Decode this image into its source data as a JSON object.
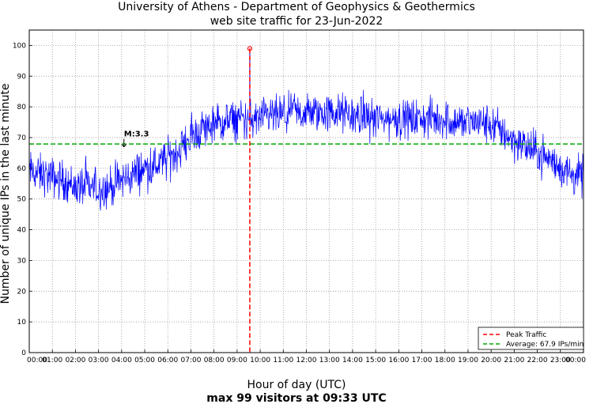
{
  "chart_data": {
    "type": "line",
    "title": "University of Athens - Department of Geophysics & Geothermics",
    "subtitle": "web site traffic for 23-Jun-2022",
    "xlabel": "Hour of day (UTC)",
    "xlabel2": "max 99 visitors at 09:33 UTC",
    "ylabel": "Number of unique IPs in the last minute",
    "ylim": [
      0,
      105
    ],
    "xlim_hours": [
      0,
      24
    ],
    "yticks": [
      0,
      10,
      20,
      30,
      40,
      50,
      60,
      70,
      80,
      90,
      100
    ],
    "xtick_labels": [
      "00:00",
      "01:00",
      "02:00",
      "03:00",
      "04:00",
      "05:00",
      "06:00",
      "07:00",
      "08:00",
      "09:00",
      "10:00",
      "11:00",
      "12:00",
      "13:00",
      "14:00",
      "15:00",
      "16:00",
      "17:00",
      "18:00",
      "19:00",
      "20:00",
      "21:00",
      "22:00",
      "23:00",
      "00:00"
    ],
    "grid": true,
    "series": [
      {
        "name": "traffic",
        "color": "#0000ff",
        "hours": [
          0,
          0.5,
          1,
          1.5,
          2,
          2.5,
          3,
          3.5,
          4,
          4.5,
          5,
          5.5,
          6,
          6.5,
          7,
          7.5,
          8,
          8.5,
          9,
          9.5,
          10,
          10.5,
          11,
          11.5,
          12,
          12.5,
          13,
          13.5,
          14,
          14.5,
          15,
          15.5,
          16,
          16.5,
          17,
          17.5,
          18,
          18.5,
          19,
          19.5,
          20,
          20.5,
          21,
          21.5,
          22,
          22.5,
          23,
          23.5,
          24
        ],
        "values": [
          59,
          58,
          57,
          56,
          54,
          54,
          53,
          54,
          56,
          58,
          60,
          61,
          63,
          66,
          70,
          73,
          74,
          75,
          76,
          76,
          76,
          77,
          77,
          78,
          78,
          78,
          78,
          78,
          77,
          77,
          76,
          76,
          76,
          76,
          76,
          76,
          76,
          75,
          75,
          75,
          74,
          72,
          69,
          67,
          65,
          63,
          60,
          58,
          57
        ],
        "noise_amplitude": 4
      }
    ],
    "peak": {
      "hour": 9.55,
      "value": 99,
      "label": "Peak Traffic",
      "color": "#ff0000"
    },
    "average": {
      "value": 67.9,
      "label": "Average: 67.9 IPs/min",
      "color": "#00aa00"
    },
    "annotation": {
      "text": "M:3.3",
      "hour": 4.1,
      "value": 67
    },
    "legend_position": "bottom-right"
  }
}
